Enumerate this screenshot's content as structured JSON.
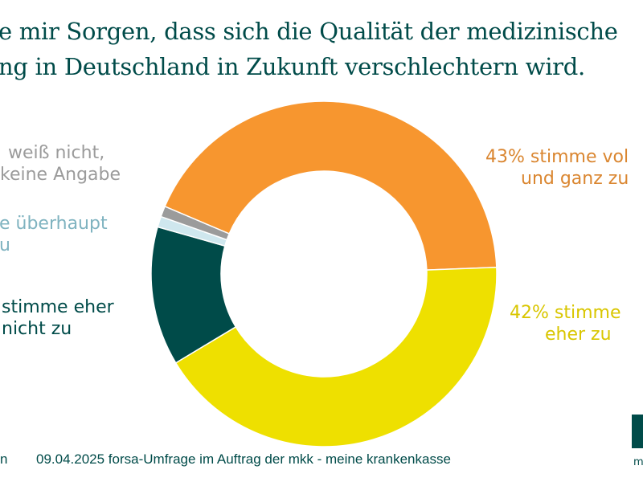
{
  "title": {
    "line1": "e mir Sorgen, dass sich die Qualität der medizinische",
    "line2": "ng in Deutschland in Zukunft verschlechtern wird."
  },
  "chart_data": {
    "type": "pie",
    "donut": true,
    "slices": [
      {
        "label_lines": [
          "43% stimme vol",
          "und ganz zu"
        ],
        "value": 43,
        "color": "#f7962f",
        "text_color": "#da8630"
      },
      {
        "label_lines": [
          "42% stimme",
          "eher zu"
        ],
        "value": 42,
        "color": "#eee000",
        "text_color": "#d9c600"
      },
      {
        "label_lines": [
          "stimme eher",
          "nicht zu"
        ],
        "value": 13,
        "color": "#004b49",
        "text_color": "#004b49"
      },
      {
        "label_lines": [
          "e überhaupt",
          "u"
        ],
        "value": 1,
        "color": "#cfe7ee",
        "text_color": "#7fb3c0"
      },
      {
        "label_lines": [
          "weiß nicht,",
          "keine Angabe"
        ],
        "value": 1,
        "color": "#9b9b9b",
        "text_color": "#9b9b9b"
      }
    ]
  },
  "footer": {
    "left_fragment": "n",
    "source": "09.04.2025 forsa-Umfrage im Auftrag der mkk - meine krankenkasse"
  },
  "logo": {
    "text": "m"
  }
}
